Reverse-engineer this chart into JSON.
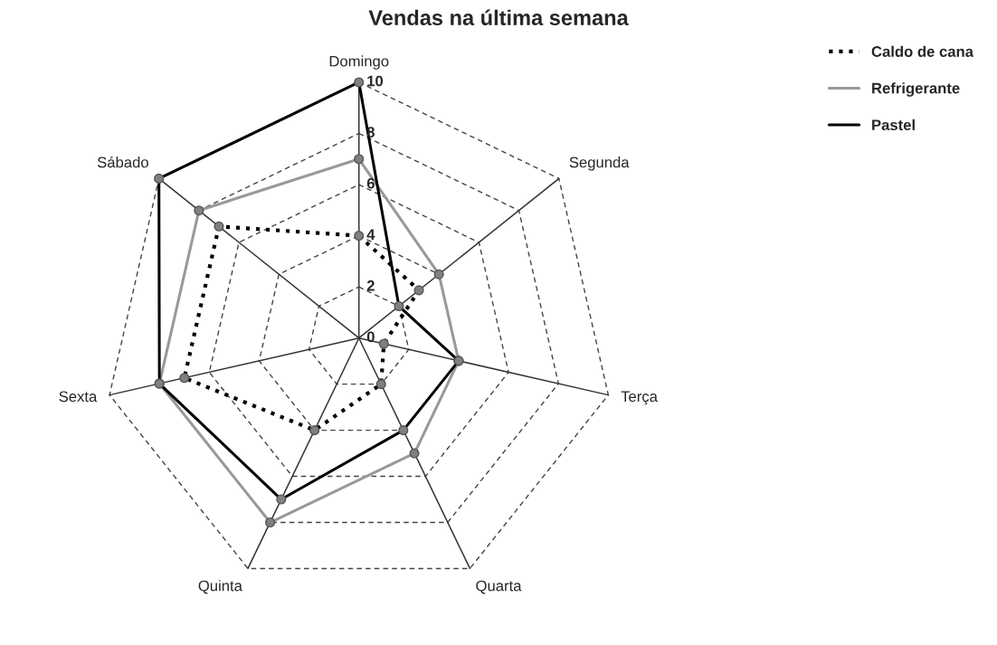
{
  "chart_data": {
    "type": "radar",
    "title": "Vendas na última semana",
    "categories": [
      "Domingo",
      "Segunda",
      "Terça",
      "Quarta",
      "Quinta",
      "Sexta",
      "Sábado"
    ],
    "ylim": [
      0,
      10
    ],
    "yticks": [
      0,
      2,
      4,
      6,
      8,
      10
    ],
    "grid": true,
    "legend": "top right",
    "marker": "circle",
    "series": [
      {
        "name": "Caldo de cana",
        "color": "#000000",
        "line_style": "dotted",
        "values": [
          4,
          3,
          1,
          2,
          4,
          7,
          7
        ]
      },
      {
        "name": "Refrigerante",
        "color": "#999999",
        "line_style": "solid",
        "values": [
          7,
          4,
          4,
          5,
          8,
          8,
          8
        ]
      },
      {
        "name": "Pastel",
        "color": "#000000",
        "line_style": "solid",
        "values": [
          10,
          2,
          4,
          4,
          7,
          8,
          10
        ]
      }
    ]
  }
}
